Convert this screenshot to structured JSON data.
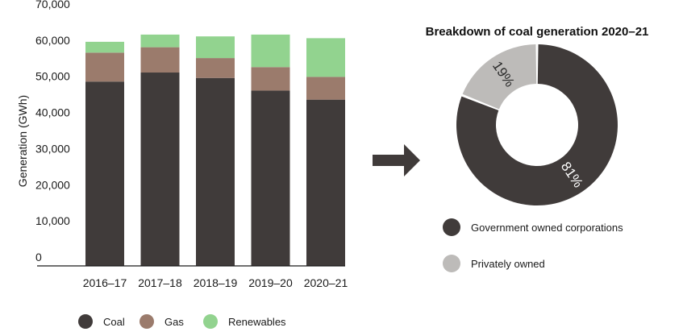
{
  "chart_data": [
    {
      "type": "bar",
      "stacked": true,
      "categories": [
        "2016–17",
        "2017–18",
        "2018–19",
        "2019–20",
        "2020–21"
      ],
      "series": [
        {
          "name": "Coal",
          "color": "#403b3a",
          "values": [
            51000,
            53500,
            52000,
            48500,
            46000
          ]
        },
        {
          "name": "Gas",
          "color": "#9b7b6c",
          "values": [
            8000,
            7000,
            5500,
            6500,
            6300
          ]
        },
        {
          "name": "Renewables",
          "color": "#92d38f",
          "values": [
            3000,
            3500,
            6000,
            9000,
            10700
          ]
        }
      ],
      "ylabel": "Generation (GWh)",
      "ylim": [
        0,
        70000
      ],
      "yticks": [
        "0",
        "10,000",
        "20,000",
        "30,000",
        "40,000",
        "50,000",
        "60,000",
        "70,000"
      ],
      "legend_position": "bottom",
      "grid": false
    },
    {
      "type": "pie",
      "donut": true,
      "title": "Breakdown of coal generation 2020–21",
      "slices": [
        {
          "name": "Government owned corporations",
          "value": 81,
          "label": "81%",
          "color": "#403b3a"
        },
        {
          "name": "Privately owned",
          "value": 19,
          "label": "19%",
          "color": "#bdbbb9"
        }
      ],
      "legend_position": "bottom"
    }
  ],
  "arrow_color": "#403b3a"
}
